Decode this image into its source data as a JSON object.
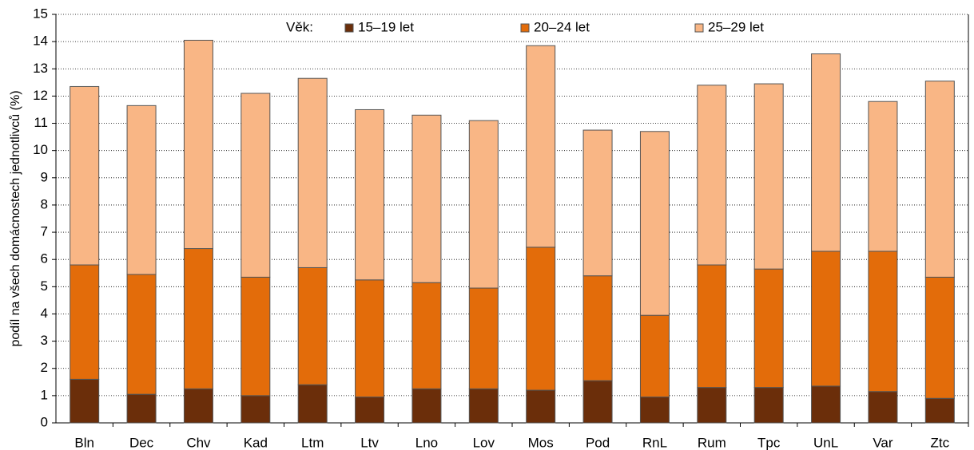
{
  "chart_data": {
    "type": "stacked_bar",
    "y_label": "podíl na všech domácnostech jednotlivců (%)",
    "legend_title": "Věk:",
    "categories": [
      "Bln",
      "Dec",
      "Chv",
      "Kad",
      "Ltm",
      "Ltv",
      "Lno",
      "Lov",
      "Mos",
      "Pod",
      "RnL",
      "Rum",
      "Tpc",
      "UnL",
      "Var",
      "Ztc"
    ],
    "series": [
      {
        "name": "15–19 let",
        "color": "#6b2e0a",
        "values": [
          1.6,
          1.05,
          1.25,
          1.0,
          1.4,
          0.95,
          1.25,
          1.25,
          1.2,
          1.55,
          0.95,
          1.3,
          1.3,
          1.35,
          1.15,
          0.9
        ]
      },
      {
        "name": "20–24 let",
        "color": "#e36c0a",
        "values": [
          4.2,
          4.4,
          5.15,
          4.35,
          4.3,
          4.3,
          3.9,
          3.7,
          5.25,
          3.85,
          3.0,
          4.5,
          4.35,
          4.95,
          5.15,
          4.45
        ]
      },
      {
        "name": "25–29 let",
        "color": "#f9b685",
        "values": [
          6.55,
          6.2,
          7.65,
          6.75,
          6.95,
          6.25,
          6.15,
          6.15,
          7.4,
          5.35,
          6.75,
          6.6,
          6.8,
          7.25,
          5.5,
          7.2
        ]
      }
    ],
    "ylim": [
      0,
      15
    ],
    "yticks": [
      0,
      1,
      2,
      3,
      4,
      5,
      6,
      7,
      8,
      9,
      10,
      11,
      12,
      13,
      14,
      15
    ],
    "grid": true,
    "legend": "top"
  }
}
